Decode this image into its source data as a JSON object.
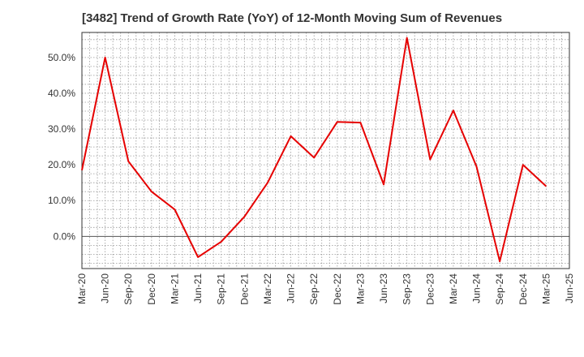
{
  "chart_data": {
    "type": "line",
    "title": "[3482]  Trend of Growth Rate (YoY) of 12-Month Moving Sum of Revenues",
    "xlabel": "",
    "ylabel": "",
    "ylim": [
      -9,
      57
    ],
    "y_ticks": [
      0,
      10,
      20,
      30,
      40,
      50
    ],
    "y_tick_labels": [
      "0.0%",
      "10.0%",
      "20.0%",
      "30.0%",
      "40.0%",
      "50.0%"
    ],
    "x_tick_labels": [
      "Mar-20",
      "Jun-20",
      "Sep-20",
      "Dec-20",
      "Mar-21",
      "Jun-21",
      "Sep-21",
      "Dec-21",
      "Mar-22",
      "Jun-22",
      "Sep-22",
      "Dec-22",
      "Mar-23",
      "Jun-23",
      "Sep-23",
      "Dec-23",
      "Mar-24",
      "Jun-24",
      "Sep-24",
      "Dec-24",
      "Mar-25",
      "Jun-25"
    ],
    "grid": true,
    "series": [
      {
        "color": "#e60000",
        "x": [
          "Mar-20",
          "Jun-20",
          "Sep-20",
          "Dec-20",
          "Mar-21",
          "Jun-21",
          "Sep-21",
          "Dec-21",
          "Mar-22",
          "Jun-22",
          "Sep-22",
          "Dec-22",
          "Mar-23",
          "Jun-23",
          "Sep-23",
          "Dec-23",
          "Mar-24",
          "Jun-24",
          "Sep-24",
          "Dec-24",
          "Mar-25"
        ],
        "values": [
          18.5,
          50.0,
          21.0,
          12.5,
          7.5,
          -5.8,
          -1.5,
          5.5,
          15.0,
          28.0,
          22.0,
          32.0,
          31.8,
          14.5,
          55.5,
          21.5,
          35.2,
          19.5,
          -7.0,
          20.0,
          14.0
        ]
      }
    ]
  }
}
